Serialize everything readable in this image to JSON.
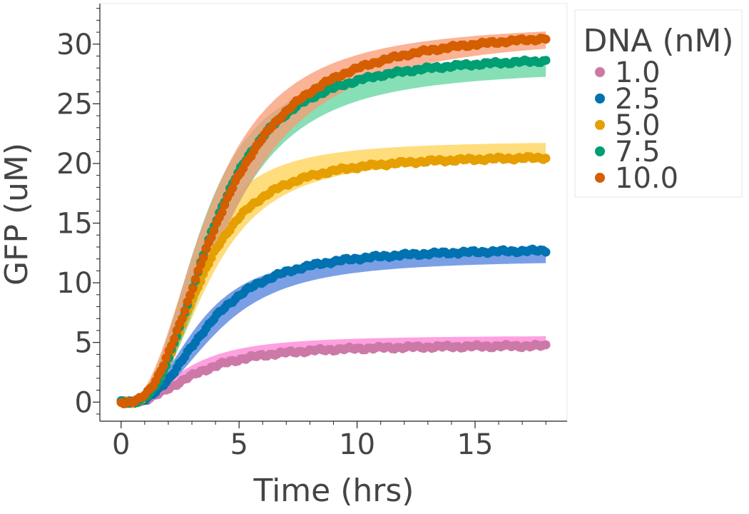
{
  "chart_data": {
    "type": "line",
    "title": "",
    "xlabel": "Time (hrs)",
    "ylabel": "GFP (uM)",
    "xlim": [
      -0.9,
      18.9
    ],
    "ylim": [
      -1.6,
      33.4
    ],
    "xticks": [
      0,
      5,
      10,
      15
    ],
    "xtick_labels": [
      "0",
      "5",
      "10",
      "15"
    ],
    "yticks": [
      0,
      5,
      10,
      15,
      20,
      25,
      30
    ],
    "ytick_labels": [
      "0",
      "5",
      "10",
      "15",
      "20",
      "25",
      "30"
    ],
    "grid": false,
    "legend": {
      "title": "DNA (nM)",
      "placement": "right, outside plot"
    },
    "t_end": 18,
    "series": [
      {
        "name": "1.0",
        "color": "#cc79a7",
        "band_color": "#ff80d5",
        "plateau": 4.8,
        "band_plateau": [
          4.8,
          5.6
        ],
        "t_half": 2.9,
        "hill": 2.2,
        "lag": 0.3
      },
      {
        "name": "2.5",
        "color": "#0072b2",
        "band_color": "#4f7fdc",
        "plateau": 12.9,
        "band_plateau": [
          11.9,
          12.7
        ],
        "t_half": 3.4,
        "hill": 2.5,
        "lag": 0.3
      },
      {
        "name": "5.0",
        "color": "#e69f00",
        "band_color": "#ffd250",
        "plateau": 20.7,
        "band_plateau": [
          20.6,
          21.9
        ],
        "t_half": 3.1,
        "hill": 2.6,
        "lag": 0.3
      },
      {
        "name": "7.5",
        "color": "#009e73",
        "band_color": "#5fd49e",
        "plateau": 29.1,
        "band_plateau": [
          27.9,
          28.7
        ],
        "t_half": 3.5,
        "hill": 2.5,
        "lag": 0.4
      },
      {
        "name": "10.0",
        "color": "#d55e00",
        "band_color": "#f99a73",
        "plateau": 31.4,
        "band_plateau": [
          30.8,
          31.8
        ],
        "t_half": 3.9,
        "hill": 2.3,
        "lag": 0.3
      }
    ]
  }
}
